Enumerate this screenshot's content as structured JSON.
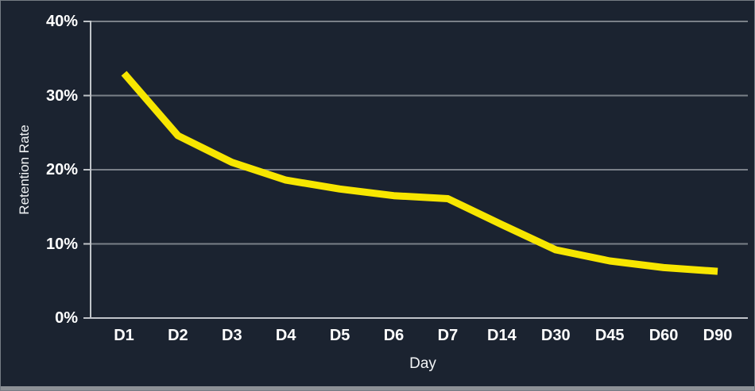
{
  "chart_data": {
    "type": "line",
    "title": "",
    "xlabel": "Day",
    "ylabel": "Retention Rate",
    "categories": [
      "D1",
      "D2",
      "D3",
      "D4",
      "D5",
      "D6",
      "D7",
      "D14",
      "D30",
      "D45",
      "D60",
      "D90"
    ],
    "series": [
      {
        "name": "Retention Rate",
        "values": [
          33,
          24.6,
          21,
          18.6,
          17.4,
          16.5,
          16.1,
          12.6,
          9.2,
          7.7,
          6.8,
          6.3
        ]
      }
    ],
    "ylim": [
      0,
      40
    ],
    "y_ticks": [
      {
        "value": 0,
        "label": "0%"
      },
      {
        "value": 10,
        "label": "10%"
      },
      {
        "value": 20,
        "label": "20%"
      },
      {
        "value": 30,
        "label": "30%"
      },
      {
        "value": 40,
        "label": "40%"
      }
    ],
    "grid": true,
    "legend_position": "none",
    "colors": {
      "line": "#f7e600",
      "background": "#1b2330",
      "gridline": "#7a8088",
      "axis": "#c0c4c9",
      "text": "#ffffff",
      "frame_border": "#767c84",
      "bottom_strip": "#8d9196"
    }
  }
}
